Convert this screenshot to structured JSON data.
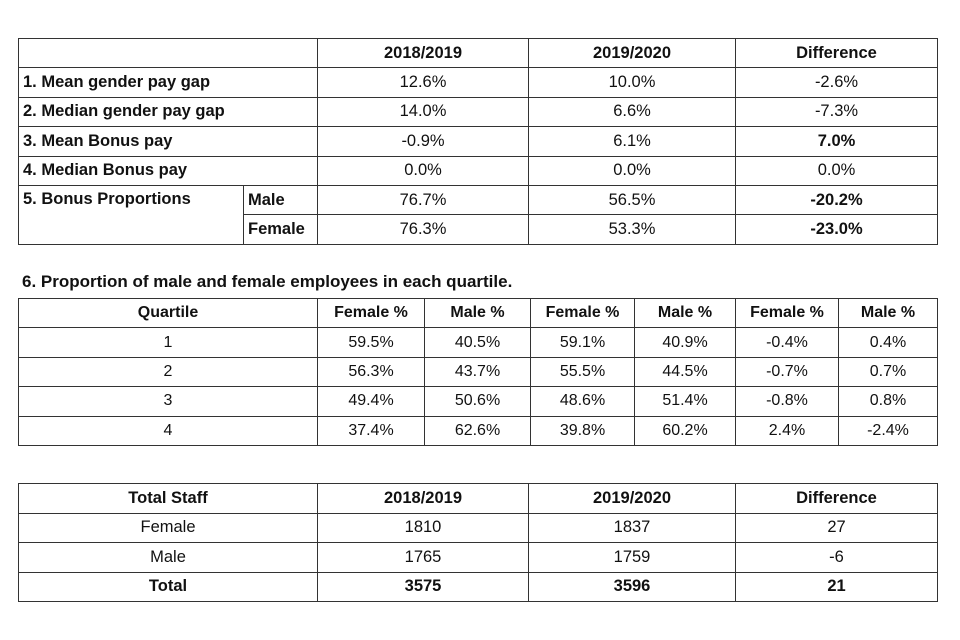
{
  "summary_table": {
    "headers": [
      "",
      "2018/2019",
      "2019/2020",
      "Difference"
    ],
    "rows": [
      {
        "label": "1. Mean gender pay gap",
        "values": [
          "12.6%",
          "10.0%",
          "-2.6%"
        ]
      },
      {
        "label": "2. Median gender pay gap",
        "values": [
          "14.0%",
          "6.6%",
          "-7.3%"
        ]
      },
      {
        "label": "3. Mean Bonus pay",
        "values": [
          "-0.9%",
          "6.1%",
          "7.0%"
        ]
      },
      {
        "label": "4. Median Bonus pay",
        "values": [
          "0.0%",
          "0.0%",
          "0.0%"
        ]
      }
    ],
    "bonus": {
      "label": "5. Bonus Proportions",
      "male": {
        "label": "Male",
        "values": [
          "76.7%",
          "56.5%",
          "-20.2%"
        ]
      },
      "female": {
        "label": "Female",
        "values": [
          "76.3%",
          "53.3%",
          "-23.0%"
        ]
      }
    }
  },
  "quartile_table": {
    "title": "6. Proportion of male and female employees in each quartile.",
    "headers": [
      "Quartile",
      "Female %",
      "Male %",
      "Female %",
      "Male %",
      "Female %",
      "Male %"
    ],
    "rows": [
      [
        "1",
        "59.5%",
        "40.5%",
        "59.1%",
        "40.9%",
        "-0.4%",
        "0.4%"
      ],
      [
        "2",
        "56.3%",
        "43.7%",
        "55.5%",
        "44.5%",
        "-0.7%",
        "0.7%"
      ],
      [
        "3",
        "49.4%",
        "50.6%",
        "48.6%",
        "51.4%",
        "-0.8%",
        "0.8%"
      ],
      [
        "4",
        "37.4%",
        "62.6%",
        "39.8%",
        "60.2%",
        "2.4%",
        "-2.4%"
      ]
    ]
  },
  "staff_table": {
    "headers": [
      "Total Staff",
      "2018/2019",
      "2019/2020",
      "Difference"
    ],
    "rows": [
      [
        "Female",
        "1810",
        "1837",
        "27"
      ],
      [
        "Male",
        "1765",
        "1759",
        "-6"
      ],
      [
        "Total",
        "3575",
        "3596",
        "21"
      ]
    ]
  }
}
